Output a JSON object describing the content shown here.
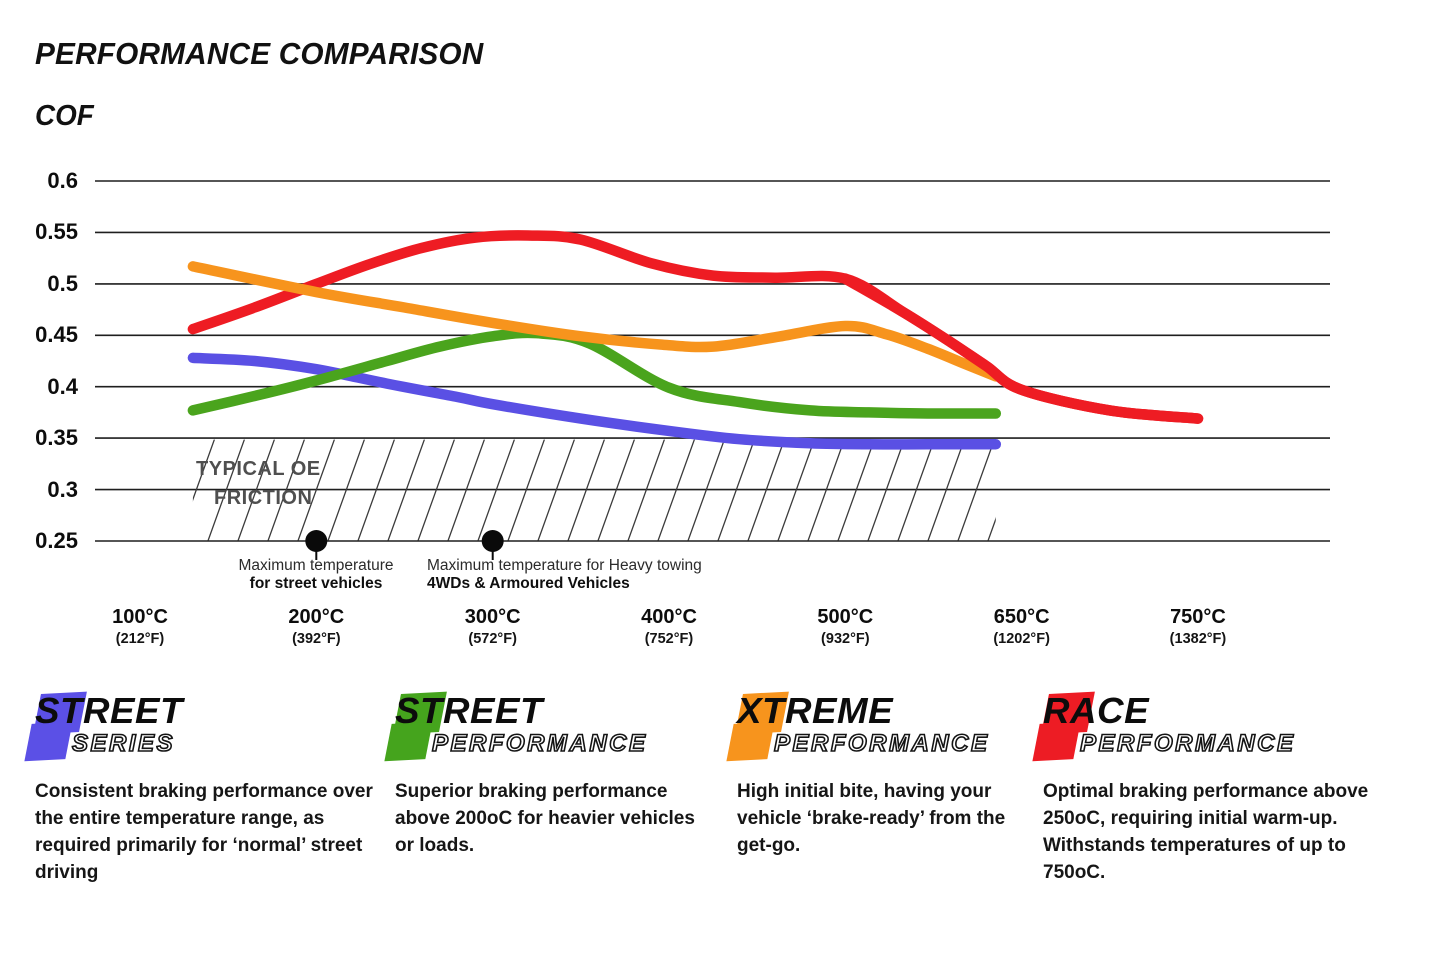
{
  "title": "PERFORMANCE COMPARISON",
  "y_axis_label": "COF",
  "chart_data": {
    "type": "line",
    "title": "Performance Comparison",
    "ylabel": "COF",
    "ylim": [
      0.25,
      0.6
    ],
    "grid": true,
    "y_tick_labels": [
      "0.6",
      "0.55",
      "0.5",
      "0.45",
      "0.4",
      "0.35",
      "0.3",
      "0.25"
    ],
    "y_tick_values": [
      0.6,
      0.55,
      0.5,
      0.45,
      0.4,
      0.35,
      0.3,
      0.25
    ],
    "x_ticks": [
      {
        "temp": 100,
        "celsius": "100°C",
        "fahrenheit": "(212°F)"
      },
      {
        "temp": 200,
        "celsius": "200°C",
        "fahrenheit": "(392°F)"
      },
      {
        "temp": 300,
        "celsius": "300°C",
        "fahrenheit": "(572°F)"
      },
      {
        "temp": 400,
        "celsius": "400°C",
        "fahrenheit": "(752°F)"
      },
      {
        "temp": 500,
        "celsius": "500°C",
        "fahrenheit": "(932°F)"
      },
      {
        "temp": 650,
        "celsius": "650°C",
        "fahrenheit": "(1202°F)"
      },
      {
        "temp": 750,
        "celsius": "750°C",
        "fahrenheit": "(1382°F)"
      }
    ],
    "series": [
      {
        "name": "Street Series",
        "color": "#5a50e4",
        "points": [
          [
            130,
            0.428
          ],
          [
            165,
            0.425
          ],
          [
            200,
            0.417
          ],
          [
            240,
            0.403
          ],
          [
            280,
            0.39
          ],
          [
            300,
            0.383
          ],
          [
            350,
            0.369
          ],
          [
            400,
            0.357
          ],
          [
            440,
            0.349
          ],
          [
            480,
            0.345
          ],
          [
            520,
            0.344
          ],
          [
            570,
            0.344
          ],
          [
            628,
            0.344
          ]
        ]
      },
      {
        "name": "Street Performance",
        "color": "#4aa41d",
        "points": [
          [
            130,
            0.377
          ],
          [
            165,
            0.391
          ],
          [
            200,
            0.406
          ],
          [
            240,
            0.425
          ],
          [
            270,
            0.439
          ],
          [
            300,
            0.449
          ],
          [
            325,
            0.452
          ],
          [
            355,
            0.442
          ],
          [
            400,
            0.399
          ],
          [
            440,
            0.385
          ],
          [
            480,
            0.377
          ],
          [
            520,
            0.375
          ],
          [
            570,
            0.374
          ],
          [
            628,
            0.374
          ]
        ]
      },
      {
        "name": "Race Performance",
        "color": "#ee1c23",
        "overdraw_from_temp": 495,
        "points": [
          [
            130,
            0.456
          ],
          [
            165,
            0.477
          ],
          [
            200,
            0.5
          ],
          [
            230,
            0.519
          ],
          [
            260,
            0.535
          ],
          [
            290,
            0.545
          ],
          [
            320,
            0.547
          ],
          [
            350,
            0.543
          ],
          [
            390,
            0.52
          ],
          [
            425,
            0.508
          ],
          [
            460,
            0.506
          ],
          [
            500,
            0.505
          ],
          [
            550,
            0.472
          ],
          [
            590,
            0.443
          ],
          [
            620,
            0.42
          ],
          [
            650,
            0.397
          ],
          [
            700,
            0.377
          ],
          [
            750,
            0.369
          ]
        ]
      },
      {
        "name": "Xtreme Performance",
        "color": "#f7941d",
        "points": [
          [
            130,
            0.517
          ],
          [
            200,
            0.492
          ],
          [
            250,
            0.477
          ],
          [
            300,
            0.462
          ],
          [
            350,
            0.449
          ],
          [
            395,
            0.441
          ],
          [
            425,
            0.439
          ],
          [
            460,
            0.448
          ],
          [
            500,
            0.459
          ],
          [
            535,
            0.451
          ],
          [
            570,
            0.437
          ],
          [
            600,
            0.423
          ],
          [
            628,
            0.41
          ]
        ]
      }
    ],
    "oe_band": {
      "label_line1": "TYPICAL OE",
      "label_line2": "FRICTION",
      "cof_min": 0.25,
      "cof_max": 0.35,
      "temp_min": 130,
      "temp_max": 628
    },
    "annotations": [
      {
        "temp": 200,
        "cof": 0.25,
        "line1": "Maximum temperature",
        "line2": "for street vehicles"
      },
      {
        "temp": 300,
        "cof": 0.25,
        "line1": "Maximum temperature for Heavy towing",
        "line2": "4WDs & Armoured Vehicles"
      }
    ]
  },
  "legend": {
    "items": [
      {
        "line1": "STREET",
        "line2": "SERIES",
        "color": "#5b50e6",
        "description": "Consistent braking performance over the entire temperature range, as required primarily for ‘normal’ street driving"
      },
      {
        "line1": "STREET",
        "line2": "PERFORMANCE",
        "color": "#45a41d",
        "description": "Superior braking performance above 200oC for heavier vehicles or loads."
      },
      {
        "line1": "XTREME",
        "line2": "PERFORMANCE",
        "color": "#f7941d",
        "description": "High initial bite, having your vehicle ‘brake-ready’ from the get-go."
      },
      {
        "line1": "RACE",
        "line2": "PERFORMANCE",
        "color": "#ed1c24",
        "description": "Optimal braking performance above 250oC, requiring initial warm-up. Withstands temperatures of up to 750oC."
      }
    ]
  }
}
